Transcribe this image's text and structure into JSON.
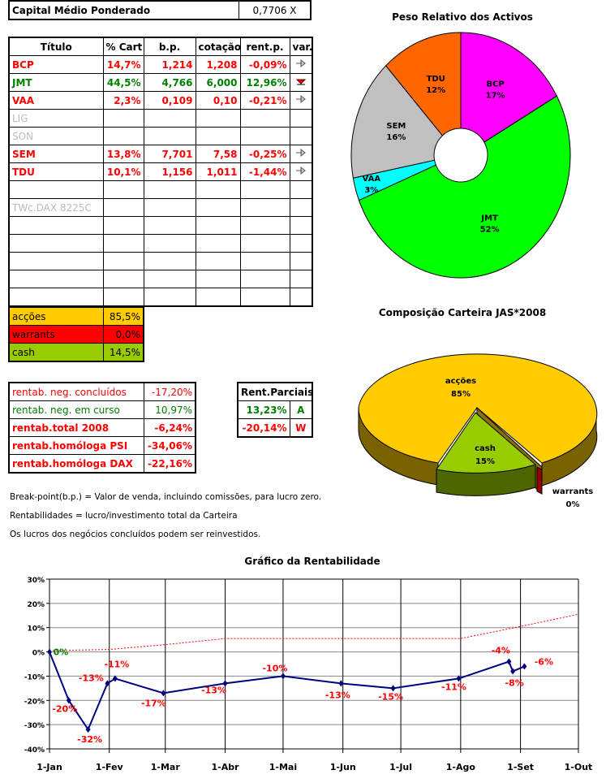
{
  "capital": {
    "label": "Capital Médio Ponderado",
    "value": "0,7706 X"
  },
  "holdings": {
    "headers": [
      "Título",
      "% Cart",
      "b.p.",
      "cotação",
      "rent.p.",
      "var."
    ],
    "rows": [
      {
        "titulo": "BCP",
        "cart": "14,7%",
        "bp": "1,214",
        "cotacao": "1,208",
        "rent": "-0,09%",
        "var": "arrow-right-icon",
        "color": "#ff0000"
      },
      {
        "titulo": "JMT",
        "cart": "44,5%",
        "bp": "4,766",
        "cotacao": "6,000",
        "rent": "12,96%",
        "var": "arrow-down-icon",
        "color": "#008000"
      },
      {
        "titulo": "VAA",
        "cart": "2,3%",
        "bp": "0,109",
        "cotacao": "0,10",
        "rent": "-0,21%",
        "var": "arrow-right-icon",
        "color": "#ff0000"
      },
      {
        "titulo": "LIG",
        "cart": "",
        "bp": "",
        "cotacao": "",
        "rent": "",
        "var": "",
        "color": "#bbbbbb"
      },
      {
        "titulo": "SON",
        "cart": "",
        "bp": "",
        "cotacao": "",
        "rent": "",
        "var": "",
        "color": "#bbbbbb"
      },
      {
        "titulo": "SEM",
        "cart": "13,8%",
        "bp": "7,701",
        "cotacao": "7,58",
        "rent": "-0,25%",
        "var": "arrow-right-icon",
        "color": "#ff0000"
      },
      {
        "titulo": "TDU",
        "cart": "10,1%",
        "bp": "1,156",
        "cotacao": "1,011",
        "rent": "-1,44%",
        "var": "arrow-right-icon",
        "color": "#ff0000"
      },
      {
        "titulo": "",
        "cart": "",
        "bp": "",
        "cotacao": "",
        "rent": "",
        "var": "",
        "color": "#000000"
      },
      {
        "titulo": "TWc.DAX 8225C",
        "cart": "",
        "bp": "",
        "cotacao": "",
        "rent": "",
        "var": "",
        "color": "#bbbbbb"
      },
      {
        "titulo": "",
        "cart": "",
        "bp": "",
        "cotacao": "",
        "rent": "",
        "var": "",
        "color": "#000000"
      },
      {
        "titulo": "",
        "cart": "",
        "bp": "",
        "cotacao": "",
        "rent": "",
        "var": "",
        "color": "#000000"
      },
      {
        "titulo": "",
        "cart": "",
        "bp": "",
        "cotacao": "",
        "rent": "",
        "var": "",
        "color": "#000000"
      },
      {
        "titulo": "",
        "cart": "",
        "bp": "",
        "cotacao": "",
        "rent": "",
        "var": "",
        "color": "#000000"
      },
      {
        "titulo": "",
        "cart": "",
        "bp": "",
        "cotacao": "",
        "rent": "",
        "var": "",
        "color": "#000000"
      }
    ]
  },
  "allocation": [
    {
      "label": "acções",
      "value": "85,5%",
      "color": "#ffcc00"
    },
    {
      "label": "warrants",
      "value": "0,0%",
      "color": "#ff0000"
    },
    {
      "label": "cash",
      "value": "14,5%",
      "color": "#99cc00"
    }
  ],
  "returns": [
    {
      "label": "rentab. neg. concluídos",
      "value": "-17,20%",
      "color": "#ff0000",
      "bold": false
    },
    {
      "label": "rentab. neg. em curso",
      "value": "10,97%",
      "color": "#008000",
      "bold": false
    },
    {
      "label": "rentab.total 2008",
      "value": "-6,24%",
      "color": "#ff0000",
      "bold": true
    },
    {
      "label": "rentab.homóloga PSI",
      "value": "-34,06%",
      "color": "#ff0000",
      "bold": true
    },
    {
      "label": "rentab.homóloga DAX",
      "value": "-22,16%",
      "color": "#ff0000",
      "bold": true
    }
  ],
  "partial": {
    "header": "Rent.Parciais",
    "rows": [
      {
        "value": "13,23%",
        "tag": "A",
        "color": "#008000"
      },
      {
        "value": "-20,14%",
        "tag": "W",
        "color": "#ff0000"
      }
    ]
  },
  "notes": [
    "Break-point(b.p.) = Valor de venda, incluindo comissões, para lucro zero.",
    "Rentabilidades = lucro/investimento total da Carteira",
    "Os lucros dos negócios concluídos podem ser reinvestidos."
  ],
  "chart_data": [
    {
      "type": "pie",
      "variant": "doughnut",
      "title": "Peso Relativo dos Activos",
      "slices": [
        {
          "label": "BCP",
          "value": 17,
          "color": "#ff00ff"
        },
        {
          "label": "JMT",
          "value": 52,
          "color": "#00ff00"
        },
        {
          "label": "VAA",
          "value": 3,
          "color": "#00ffff"
        },
        {
          "label": "SEM",
          "value": 16,
          "color": "#c0c0c0"
        },
        {
          "label": "TDU",
          "value": 12,
          "color": "#ff6600"
        }
      ]
    },
    {
      "type": "pie",
      "variant": "3d-exploded",
      "title": "Composição Carteira JAS*2008",
      "slices": [
        {
          "label": "acções",
          "value": 85,
          "color": "#ffcc00"
        },
        {
          "label": "cash",
          "value": 15,
          "color": "#99cc00"
        },
        {
          "label": "warrants",
          "value": 0,
          "color": "#ff0000"
        }
      ]
    },
    {
      "type": "line",
      "title": "Gráfico da Rentabilidade",
      "ylim": [
        -40,
        30
      ],
      "yticks": [
        "30%",
        "20%",
        "10%",
        "0%",
        "-10%",
        "-20%",
        "-30%",
        "-40%"
      ],
      "xticks": [
        "1-Jan",
        "1-Fev",
        "1-Mar",
        "1-Abr",
        "1-Mai",
        "1-Jun",
        "1-Jul",
        "1-Ago",
        "1-Set",
        "1-Out"
      ],
      "grid": true,
      "series": [
        {
          "style": "solid",
          "color": "#000080",
          "points": [
            [
              "2008-01-01",
              0,
              "0%"
            ],
            [
              "2008-01-11",
              -20,
              "-20%"
            ],
            [
              "2008-01-21",
              -32,
              "-32%"
            ],
            [
              "2008-01-31",
              -13,
              "-13%"
            ],
            [
              "2008-02-04",
              -11,
              "-11%"
            ],
            [
              "2008-02-29",
              -17,
              "-17%"
            ],
            [
              "2008-04-01",
              -13,
              "-13%"
            ],
            [
              "2008-05-01",
              -10,
              "-10%"
            ],
            [
              "2008-05-31",
              -13,
              "-13%"
            ],
            [
              "2008-06-27",
              -15,
              "-15%"
            ],
            [
              "2008-07-31",
              -11,
              "-11%"
            ],
            [
              "2008-08-26",
              -4,
              "-4%"
            ],
            [
              "2008-08-28",
              -8,
              "-8%"
            ],
            [
              "2008-09-03",
              -6,
              "-6%"
            ]
          ]
        },
        {
          "style": "dotted",
          "color": "#ff0000",
          "points": [
            [
              "2008-01-01",
              0.5
            ],
            [
              "2008-02-01",
              1
            ],
            [
              "2008-03-01",
              3
            ],
            [
              "2008-04-01",
              5.5
            ],
            [
              "2008-08-01",
              5.5
            ],
            [
              "2008-09-01",
              10.5
            ],
            [
              "2008-10-01",
              15.5
            ]
          ]
        }
      ]
    }
  ]
}
